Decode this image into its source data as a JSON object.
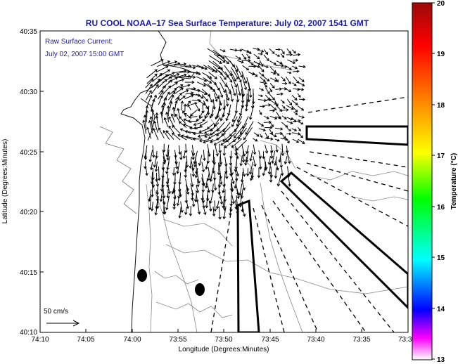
{
  "map": {
    "title": "RU COOL  NOAA–17  Sea Surface Temperature:  July 02, 2007 1541 GMT",
    "annotation": [
      "Raw Surface Current:",
      "July 02, 2007 15:00 GMT"
    ],
    "x_axis_label": "Longitude (Degrees:Minutes)",
    "y_axis_label": "Latitude (Degrees:Minutes)",
    "x_ticks": [
      "74:10",
      "74:05",
      "74:00",
      "73:55",
      "73:50",
      "73:45",
      "73:40",
      "73:35",
      "73:3"
    ],
    "y_ticks": [
      "40:35",
      "40:30",
      "40:25",
      "40:20",
      "40:15",
      "40:10"
    ],
    "scale_label": "50 cm/s",
    "colorbar": {
      "label": "Temperature (°C)",
      "ticks": [
        "20",
        "19",
        "18",
        "17",
        "16",
        "15",
        "14",
        "13"
      ],
      "colors": [
        "#9a0a0a",
        "#ff0000",
        "#ff9a00",
        "#ffff00",
        "#00ff00",
        "#00ffff",
        "#0000ff",
        "#ff00ff",
        "#ffffff"
      ]
    }
  }
}
